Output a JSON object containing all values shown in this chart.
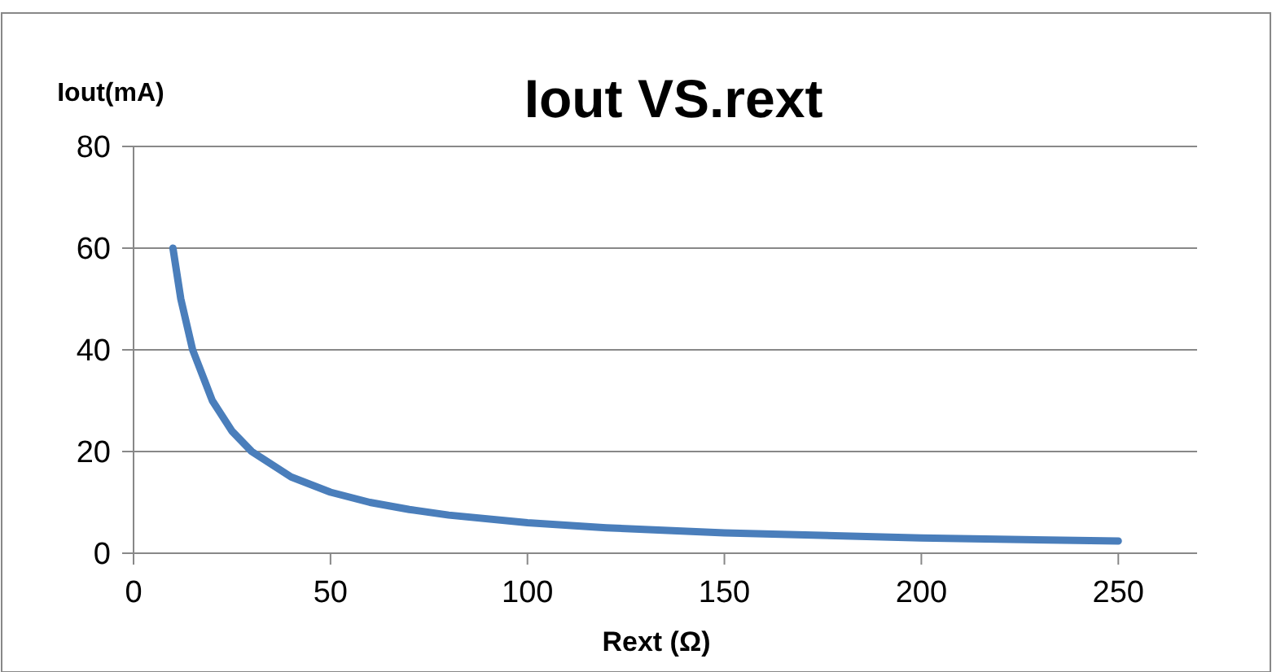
{
  "chart_data": {
    "type": "line",
    "title": "Iout VS.rext",
    "xlabel": "Rext (Ω)",
    "ylabel": "Iout(mA)",
    "x": [
      10,
      12,
      15,
      20,
      25,
      30,
      40,
      50,
      60,
      70,
      80,
      100,
      120,
      150,
      200,
      250
    ],
    "series": [
      {
        "color": "#4a7ebb",
        "values": [
          60,
          50,
          40,
          30,
          24,
          20,
          15,
          12,
          10,
          8.6,
          7.5,
          6,
          5,
          4,
          3,
          2.4
        ]
      }
    ],
    "xlim": [
      0,
      270
    ],
    "xticks": [
      0,
      50,
      100,
      150,
      200,
      250
    ],
    "ylim": [
      0,
      80
    ],
    "yticks": [
      0,
      20,
      40,
      60,
      80
    ],
    "grid": "y",
    "marker": "none",
    "line_style": "solid"
  }
}
